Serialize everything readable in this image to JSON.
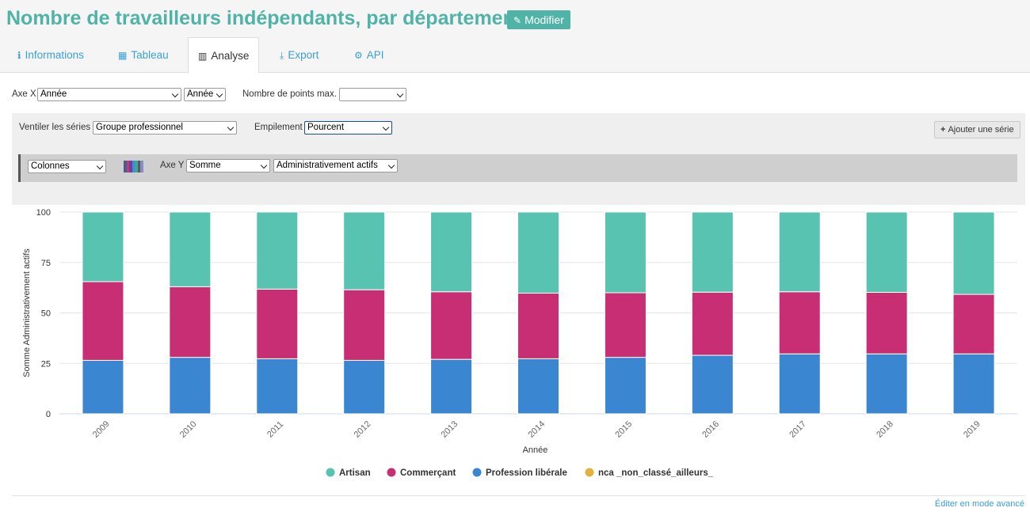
{
  "page": {
    "title": "Nombre de travailleurs indépendants, par département",
    "edit_label": "Modifier"
  },
  "tabs": [
    {
      "label": "Informations",
      "icon": "info-icon"
    },
    {
      "label": "Tableau",
      "icon": "table-icon"
    },
    {
      "label": "Analyse",
      "icon": "bar-chart-icon",
      "active": true
    },
    {
      "label": "Export",
      "icon": "download-icon"
    },
    {
      "label": "API",
      "icon": "gears-icon"
    }
  ],
  "controls": {
    "x_axis_label": "Axe X",
    "x_axis_value": "Année",
    "x_axis_period": "Année",
    "max_points_label": "Nombre de points max.",
    "max_points_value": "",
    "breakdown_label": "Ventiler les séries",
    "breakdown_value": "Groupe professionnel",
    "stacking_label": "Empilement",
    "stacking_value": "Pourcent",
    "add_series_label": "Ajouter une série"
  },
  "series_config": {
    "chart_type": "Colonnes",
    "y_axis_label": "Axe Y",
    "y_aggregate": "Somme",
    "y_field": "Administrativement actifs",
    "palette": [
      "#4b5d8c",
      "#c63b6a",
      "#6e3fa3",
      "#3b8fd6",
      "#3aa6a0",
      "#5a5a5a",
      "#8a8ac8"
    ]
  },
  "chart_data": {
    "type": "bar",
    "stacking": "percent",
    "categories": [
      "2009",
      "2010",
      "2011",
      "2012",
      "2013",
      "2014",
      "2015",
      "2016",
      "2017",
      "2018",
      "2019"
    ],
    "series": [
      {
        "name": "Profession libérale",
        "color": "#3b86d1",
        "values": [
          26.5,
          28,
          27.3,
          26.5,
          27,
          27.3,
          28,
          29,
          29.7,
          29.7,
          29.7
        ]
      },
      {
        "name": "Commerçant",
        "color": "#c82e73",
        "values": [
          39,
          35,
          34.5,
          35,
          33.5,
          32.5,
          32,
          31.3,
          30.8,
          30.5,
          29.5
        ]
      },
      {
        "name": "Artisan",
        "color": "#58c3b0",
        "values": [
          34.5,
          37,
          38.2,
          38.5,
          39.5,
          40.2,
          40,
          39.7,
          39.5,
          39.8,
          40.8
        ]
      },
      {
        "name": "nca _non_classé_ailleurs_",
        "color": "#e3b23c",
        "values": [
          0,
          0,
          0,
          0,
          0,
          0,
          0,
          0,
          0,
          0,
          0
        ]
      }
    ],
    "legend_order": [
      "Artisan",
      "Commerçant",
      "Profession libérale",
      "nca _non_classé_ailleurs_"
    ],
    "xlabel": "Année",
    "ylabel": "Somme Administrativement actifs",
    "ylim": [
      0,
      100
    ],
    "yticks": [
      0,
      25,
      50,
      75,
      100
    ],
    "grid": true,
    "legend_position": "bottom"
  },
  "footer": {
    "advanced_link": "Éditer en mode avancé"
  }
}
